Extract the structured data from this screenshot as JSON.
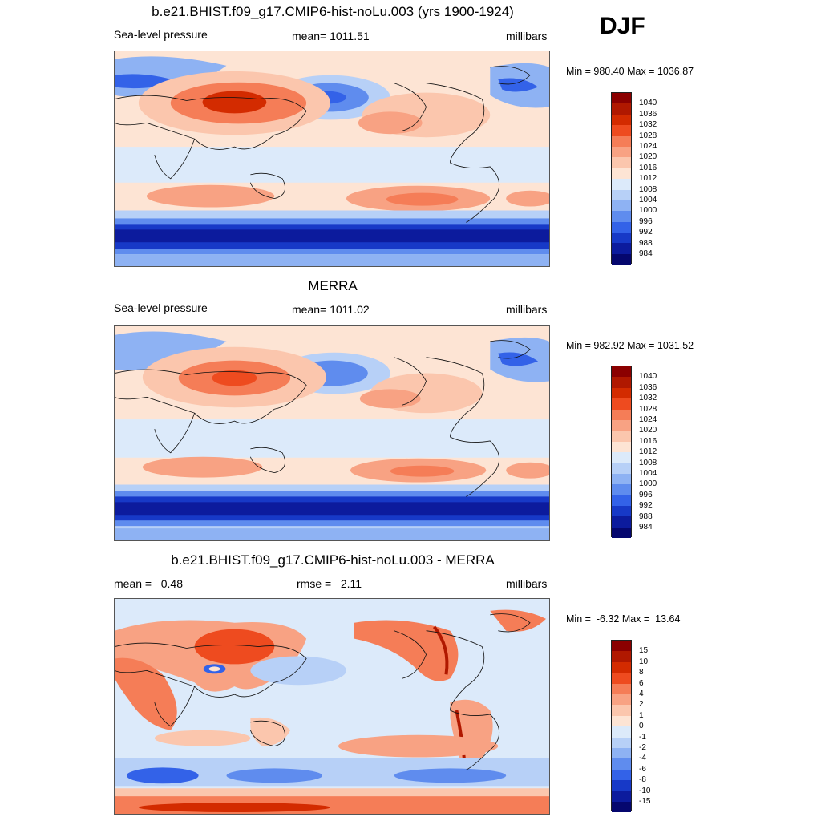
{
  "season": "DJF",
  "panels": [
    {
      "title": "b.e21.BHIST.f09_g17.CMIP6-hist-noLu.003 (yrs 1900-1924)",
      "left_label": "Sea-level pressure",
      "center_label": "mean= 1011.51",
      "right_label": "millibars",
      "minmax": "Min = 980.40 Max = 1036.87"
    },
    {
      "title": "MERRA",
      "left_label": "Sea-level pressure",
      "center_label": "mean= 1011.02",
      "right_label": "millibars",
      "minmax": "Min = 982.92 Max = 1031.52"
    },
    {
      "title": "b.e21.BHIST.f09_g17.CMIP6-hist-noLu.003 - MERRA",
      "left_label": "mean =   0.48",
      "center_label": "rmse =   2.11",
      "right_label": "millibars",
      "minmax": "Min =  -6.32 Max =  13.64"
    }
  ],
  "colorbars": {
    "pressure": {
      "labels": [
        "1040",
        "1036",
        "1032",
        "1028",
        "1024",
        "1020",
        "1016",
        "1012",
        "1008",
        "1004",
        "1000",
        "996",
        "992",
        "988",
        "984"
      ],
      "colors": [
        "#8b0000",
        "#b01800",
        "#d32b00",
        "#ee4b1f",
        "#f57d57",
        "#f8a283",
        "#fbc6ad",
        "#fde4d4",
        "#dceafa",
        "#b7d0f7",
        "#8eb2f3",
        "#5f8cee",
        "#3362e8",
        "#1739c7",
        "#0c1b9d",
        "#05076e"
      ]
    },
    "difference": {
      "labels": [
        "15",
        "10",
        "8",
        "6",
        "4",
        "2",
        "1",
        "0",
        "-1",
        "-2",
        "-4",
        "-6",
        "-8",
        "-10",
        "-15"
      ],
      "colors": [
        "#8b0000",
        "#b01800",
        "#d32b00",
        "#ee4b1f",
        "#f57d57",
        "#f8a283",
        "#fbc6ad",
        "#fde4d4",
        "#dceafa",
        "#b7d0f7",
        "#8eb2f3",
        "#5f8cee",
        "#3362e8",
        "#1739c7",
        "#0c1b9d",
        "#05076e"
      ]
    }
  }
}
